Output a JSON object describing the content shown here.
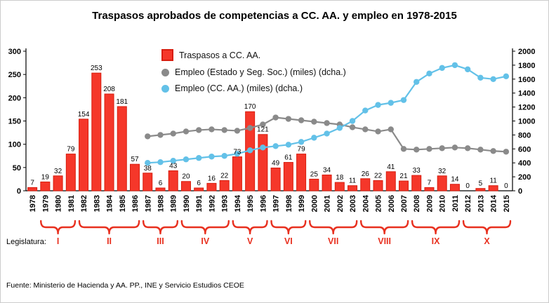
{
  "title": "Traspasos aprobados de competencias a CC. AA.  y empleo en 1978-2015",
  "footer": "Fuente: Ministerio de Hacienda y AA. PP., INE y Servicio Estudios CEOE",
  "legislatura_label": "Legislatura:",
  "colors": {
    "bar": "#f5372a",
    "bar_stroke": "#d81d0e",
    "gray_line": "#8a8a8a",
    "blue_line": "#63c1e8",
    "brace": "#e8301f",
    "axis": "#000000"
  },
  "chart_data": {
    "type": "bar",
    "title": "Traspasos aprobados de competencias a CC. AA.  y empleo en 1978-2015",
    "categories": [
      1978,
      1979,
      1980,
      1981,
      1982,
      1983,
      1984,
      1985,
      1986,
      1987,
      1988,
      1989,
      1990,
      1991,
      1992,
      1993,
      1994,
      1995,
      1996,
      1997,
      1998,
      1999,
      2000,
      2001,
      2002,
      2003,
      2004,
      2005,
      2006,
      2007,
      2008,
      2009,
      2010,
      2011,
      2012,
      2013,
      2014,
      2015
    ],
    "left_axis": {
      "min": 0,
      "max": 300,
      "step": 50
    },
    "right_axis": {
      "min": 0,
      "max": 2000,
      "step": 200
    },
    "legend_position": "top-center-inside",
    "grid": false,
    "series": [
      {
        "name": "Traspasos a CC. AA.",
        "type": "bar",
        "axis": "left",
        "values": [
          7,
          19,
          32,
          79,
          154,
          253,
          208,
          181,
          57,
          38,
          6,
          43,
          20,
          6,
          16,
          22,
          73,
          170,
          121,
          49,
          61,
          79,
          25,
          34,
          18,
          11,
          26,
          22,
          41,
          21,
          33,
          7,
          32,
          14,
          0,
          5,
          11,
          0
        ]
      },
      {
        "name": "Empleo (Estado y Seg. Soc.) (miles) (dcha.)",
        "type": "line",
        "axis": "right",
        "values": [
          null,
          null,
          null,
          null,
          null,
          null,
          null,
          null,
          null,
          780,
          800,
          820,
          850,
          870,
          880,
          870,
          860,
          900,
          950,
          1050,
          1030,
          1010,
          990,
          970,
          950,
          910,
          880,
          850,
          880,
          600,
          590,
          600,
          610,
          620,
          610,
          590,
          570,
          560
        ]
      },
      {
        "name": "Empleo (CC. AA.) (miles) (dcha.)",
        "type": "line",
        "axis": "right",
        "values": [
          null,
          null,
          null,
          null,
          null,
          null,
          null,
          null,
          null,
          400,
          410,
          430,
          450,
          470,
          490,
          500,
          530,
          580,
          620,
          640,
          660,
          700,
          760,
          820,
          900,
          1000,
          1150,
          1230,
          1260,
          1300,
          1560,
          1680,
          1760,
          1800,
          1740,
          1620,
          1600,
          1640
        ]
      }
    ]
  },
  "legislatures": [
    {
      "label": "I",
      "from": 1979,
      "to": 1981
    },
    {
      "label": "II",
      "from": 1982,
      "to": 1986
    },
    {
      "label": "III",
      "from": 1987,
      "to": 1989
    },
    {
      "label": "IV",
      "from": 1990,
      "to": 1993
    },
    {
      "label": "V",
      "from": 1994,
      "to": 1996
    },
    {
      "label": "VI",
      "from": 1997,
      "to": 1999
    },
    {
      "label": "VII",
      "from": 2000,
      "to": 2003
    },
    {
      "label": "VIII",
      "from": 2004,
      "to": 2007
    },
    {
      "label": "IX",
      "from": 2008,
      "to": 2011
    },
    {
      "label": "X",
      "from": 2012,
      "to": 2015
    }
  ]
}
